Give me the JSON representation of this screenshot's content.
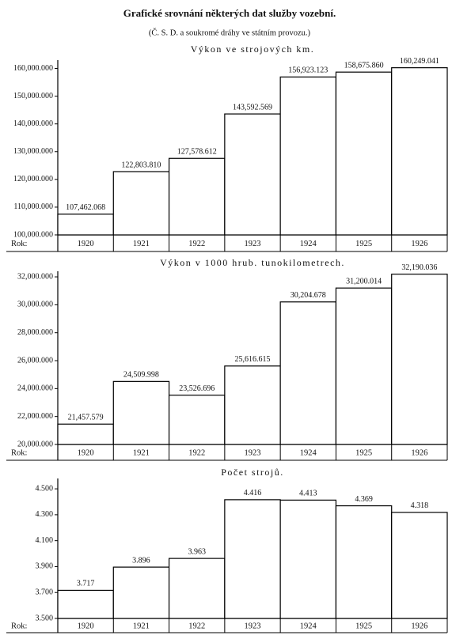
{
  "header": {
    "title": "Grafické srovnání některých dat služby vozební.",
    "subtitle": "(Č. S. D. a soukromé dráhy ve státním provozu.)"
  },
  "chart_data": [
    {
      "type": "bar",
      "title": "Výkon ve strojových km.",
      "xlabel": "Rok:",
      "color": "#000000",
      "categories": [
        "1920",
        "1921",
        "1922",
        "1923",
        "1924",
        "1925",
        "1926"
      ],
      "values": [
        107462068,
        122803810,
        127578612,
        143592569,
        156923123,
        158675860,
        160249041
      ],
      "value_labels": [
        "107,462.068",
        "122,803.810",
        "127,578.612",
        "143,592.569",
        "156,923.123",
        "158,675.860",
        "160,249.041"
      ],
      "ylim": [
        100000000,
        163000000
      ],
      "yticks": [
        {
          "value": 100000000,
          "label": "100,000.000"
        },
        {
          "value": 110000000,
          "label": "110,000.000"
        },
        {
          "value": 120000000,
          "label": "120,000.000"
        },
        {
          "value": 130000000,
          "label": "130,000.000"
        },
        {
          "value": 140000000,
          "label": "140,000.000"
        },
        {
          "value": 150000000,
          "label": "150,000.000"
        },
        {
          "value": 160000000,
          "label": "160,000.000"
        }
      ]
    },
    {
      "type": "bar",
      "title": "Výkon v 1000 hrub. tunokilometrech.",
      "xlabel": "Rok:",
      "color": "#000000",
      "categories": [
        "1920",
        "1921",
        "1922",
        "1923",
        "1924",
        "1925",
        "1926"
      ],
      "values": [
        21457579,
        24509998,
        23526696,
        25616615,
        30204678,
        31200014,
        32190036
      ],
      "value_labels": [
        "21,457.579",
        "24,509.998",
        "23,526.696",
        "25,616.615",
        "30,204.678",
        "31,200.014",
        "32,190.036"
      ],
      "ylim": [
        20000000,
        32400000
      ],
      "yticks": [
        {
          "value": 20000000,
          "label": "20,000.000"
        },
        {
          "value": 22000000,
          "label": "22,000.000"
        },
        {
          "value": 24000000,
          "label": "24,000.000"
        },
        {
          "value": 26000000,
          "label": "26,000.000"
        },
        {
          "value": 28000000,
          "label": "28,000.000"
        },
        {
          "value": 30000000,
          "label": "30,000.000"
        },
        {
          "value": 32000000,
          "label": "32,000.000"
        }
      ]
    },
    {
      "type": "bar",
      "title": "Počet strojů.",
      "xlabel": "Rok:",
      "color": "#000000",
      "categories": [
        "1920",
        "1921",
        "1922",
        "1923",
        "1924",
        "1925",
        "1926"
      ],
      "values": [
        3717,
        3896,
        3963,
        4416,
        4413,
        4369,
        4318
      ],
      "value_labels": [
        "3.717",
        "3.896",
        "3.963",
        "4.416",
        "4.413",
        "4.369",
        "4.318"
      ],
      "ylim": [
        3500,
        4580
      ],
      "yticks": [
        {
          "value": 3500,
          "label": "3.500"
        },
        {
          "value": 3700,
          "label": "3.700"
        },
        {
          "value": 3900,
          "label": "3.900"
        },
        {
          "value": 4100,
          "label": "4.100"
        },
        {
          "value": 4300,
          "label": "4.300"
        },
        {
          "value": 4500,
          "label": "4.500"
        }
      ]
    }
  ]
}
